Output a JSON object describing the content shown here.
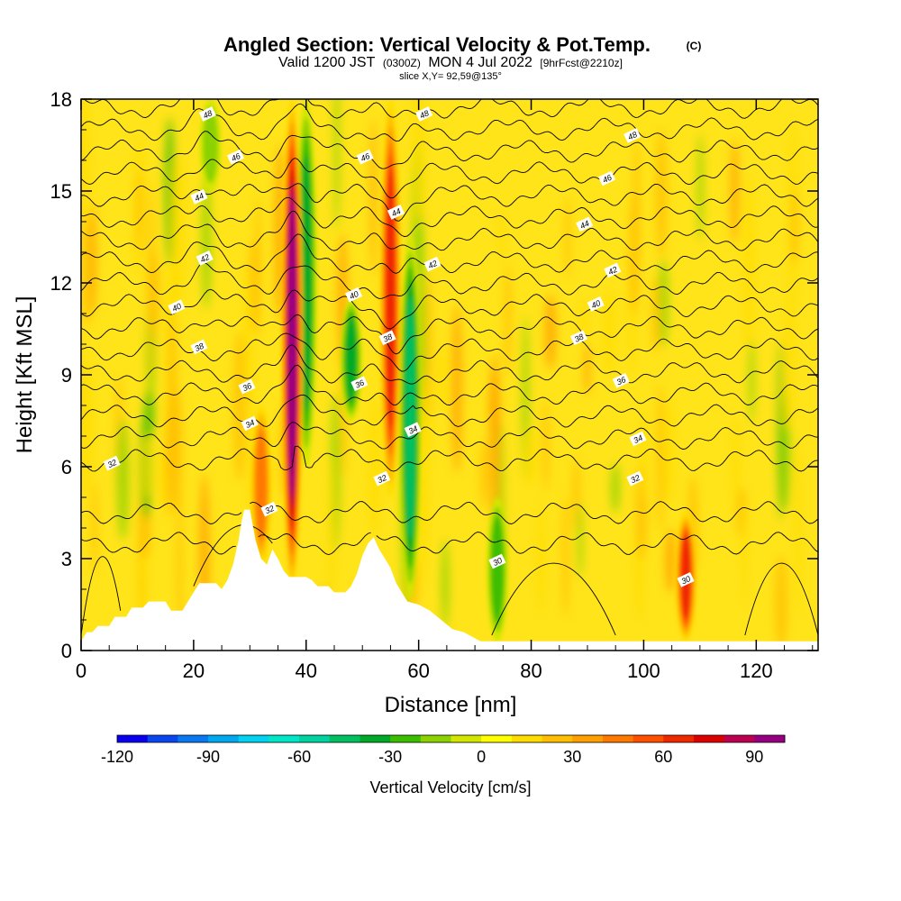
{
  "chart_data": {
    "type": "heatmap",
    "title": "Angled Section: Vertical Velocity & Pot.Temp.",
    "title_tag": "(C)",
    "subtitle_prefix": "Valid 1200 JST",
    "subtitle_utc": "(0300Z)",
    "subtitle_date": "MON 4 Jul 2022",
    "subtitle_fcst": "[9hrFcst@2210z]",
    "slice_label": "slice X,Y= 92,59@135°",
    "xlabel": "Distance [nm]",
    "ylabel": "Height [Kft MSL]",
    "xlim": [
      0,
      131
    ],
    "ylim": [
      0,
      18
    ],
    "xticks": [
      0,
      20,
      40,
      60,
      80,
      100,
      120
    ],
    "xtick_labels": [
      "0",
      "20",
      "40",
      "60",
      "80",
      "100",
      "120"
    ],
    "yticks": [
      0,
      3,
      6,
      9,
      12,
      15,
      18
    ],
    "ytick_labels": [
      "0",
      "3",
      "6",
      "9",
      "12",
      "15",
      "18"
    ],
    "colorbar": {
      "label": "Vertical Velocity [cm/s]",
      "min": -120,
      "max": 100,
      "step": 10,
      "tick_values": [
        -120,
        -90,
        -60,
        -30,
        0,
        30,
        60,
        90
      ],
      "tick_labels": [
        "-120",
        "-90",
        "-60",
        "-30",
        "0",
        "30",
        "60",
        "90"
      ],
      "colors": [
        "#0a00f0",
        "#0a46f0",
        "#0a78f0",
        "#00a8f0",
        "#00d2f0",
        "#00e6c8",
        "#00d2a0",
        "#00c060",
        "#00aa28",
        "#3cbe00",
        "#8cd200",
        "#d2e600",
        "#ffff00",
        "#ffdc00",
        "#ffbe00",
        "#ffa000",
        "#ff7800",
        "#ff5000",
        "#f02800",
        "#dc0000",
        "#be0050",
        "#960080"
      ]
    },
    "theta_contours": {
      "units": "C",
      "levels": [
        29,
        30,
        31,
        32,
        33,
        34,
        35,
        36,
        37,
        38,
        39,
        40,
        41,
        42,
        43,
        44,
        45,
        46,
        47,
        48,
        49
      ],
      "labels": [
        {
          "text": "30",
          "x": 74,
          "y": 2.9
        },
        {
          "text": "30",
          "x": 107.5,
          "y": 2.3
        },
        {
          "text": "32",
          "x": 5.5,
          "y": 6.1
        },
        {
          "text": "32",
          "x": 33.5,
          "y": 4.6
        },
        {
          "text": "32",
          "x": 53.5,
          "y": 5.6
        },
        {
          "text": "32",
          "x": 98.5,
          "y": 5.6
        },
        {
          "text": "34",
          "x": 30,
          "y": 7.4
        },
        {
          "text": "34",
          "x": 59,
          "y": 7.2
        },
        {
          "text": "34",
          "x": 99,
          "y": 6.9
        },
        {
          "text": "36",
          "x": 29.5,
          "y": 8.6
        },
        {
          "text": "36",
          "x": 49.5,
          "y": 8.7
        },
        {
          "text": "36",
          "x": 96,
          "y": 8.8
        },
        {
          "text": "38",
          "x": 21,
          "y": 9.9
        },
        {
          "text": "38",
          "x": 54.5,
          "y": 10.2
        },
        {
          "text": "38",
          "x": 88.5,
          "y": 10.2
        },
        {
          "text": "40",
          "x": 17,
          "y": 11.2
        },
        {
          "text": "40",
          "x": 48.5,
          "y": 11.6
        },
        {
          "text": "40",
          "x": 91.5,
          "y": 11.3
        },
        {
          "text": "42",
          "x": 22,
          "y": 12.8
        },
        {
          "text": "42",
          "x": 62.5,
          "y": 12.6
        },
        {
          "text": "42",
          "x": 94.5,
          "y": 12.4
        },
        {
          "text": "44",
          "x": 21,
          "y": 14.8
        },
        {
          "text": "44",
          "x": 56,
          "y": 14.3
        },
        {
          "text": "44",
          "x": 89.5,
          "y": 13.9
        },
        {
          "text": "46",
          "x": 27.5,
          "y": 16.1
        },
        {
          "text": "46",
          "x": 50.5,
          "y": 16.1
        },
        {
          "text": "46",
          "x": 93.5,
          "y": 15.4
        },
        {
          "text": "48",
          "x": 22.5,
          "y": 17.5
        },
        {
          "text": "48",
          "x": 61,
          "y": 17.5
        },
        {
          "text": "48",
          "x": 98,
          "y": 16.8
        }
      ]
    },
    "terrain_kft": [
      [
        0,
        0.3
      ],
      [
        1,
        0.6
      ],
      [
        2,
        0.6
      ],
      [
        3,
        0.8
      ],
      [
        5,
        0.8
      ],
      [
        6,
        1.1
      ],
      [
        8,
        1.1
      ],
      [
        9,
        1.4
      ],
      [
        11,
        1.4
      ],
      [
        12,
        1.6
      ],
      [
        15,
        1.6
      ],
      [
        16,
        1.3
      ],
      [
        18,
        1.3
      ],
      [
        19,
        1.6
      ],
      [
        20,
        1.9
      ],
      [
        21,
        2.2
      ],
      [
        24,
        2.2
      ],
      [
        25,
        2.0
      ],
      [
        26,
        2.3
      ],
      [
        27,
        2.8
      ],
      [
        28,
        3.6
      ],
      [
        28.5,
        4.2
      ],
      [
        29,
        4.6
      ],
      [
        30,
        4.6
      ],
      [
        30.5,
        4.1
      ],
      [
        31,
        3.6
      ],
      [
        32,
        3.0
      ],
      [
        33,
        2.8
      ],
      [
        34,
        3.3
      ],
      [
        35,
        3.0
      ],
      [
        36,
        2.6
      ],
      [
        37,
        2.4
      ],
      [
        40,
        2.4
      ],
      [
        41,
        2.3
      ],
      [
        42,
        2.1
      ],
      [
        44,
        2.1
      ],
      [
        45,
        1.9
      ],
      [
        47,
        1.9
      ],
      [
        48,
        2.1
      ],
      [
        49,
        2.5
      ],
      [
        50,
        3.1
      ],
      [
        51,
        3.5
      ],
      [
        52,
        3.7
      ],
      [
        53,
        3.3
      ],
      [
        54,
        3.0
      ],
      [
        55,
        2.7
      ],
      [
        56,
        2.2
      ],
      [
        57,
        1.9
      ],
      [
        58,
        1.6
      ],
      [
        60,
        1.5
      ],
      [
        62,
        1.3
      ],
      [
        64,
        1.0
      ],
      [
        66,
        0.7
      ],
      [
        68,
        0.6
      ],
      [
        70,
        0.4
      ],
      [
        71,
        0.3
      ],
      [
        131,
        0.3
      ]
    ],
    "updraft_cores": [
      {
        "x": 37.5,
        "z_base": 2.0,
        "z_top": 18,
        "max_cm_s": 90
      },
      {
        "x": 55,
        "z_base": 5.0,
        "z_top": 18,
        "max_cm_s": 60
      },
      {
        "x": 107.5,
        "z_base": 0.3,
        "z_top": 4.5,
        "max_cm_s": 60
      },
      {
        "x": 32,
        "z_base": 2.8,
        "z_top": 8.0,
        "max_cm_s": 40
      }
    ],
    "downdraft_cores": [
      {
        "x": 58.5,
        "z_base": 1.7,
        "z_top": 13.5,
        "min_cm_s": -50
      },
      {
        "x": 40,
        "z_base": 6,
        "z_top": 18,
        "min_cm_s": -40
      },
      {
        "x": 48,
        "z_base": 7.5,
        "z_top": 11.5,
        "min_cm_s": -40
      },
      {
        "x": 23,
        "z_base": 15,
        "z_top": 18,
        "min_cm_s": -20
      },
      {
        "x": 74,
        "z_base": 0.3,
        "z_top": 5.0,
        "min_cm_s": -30
      }
    ]
  }
}
